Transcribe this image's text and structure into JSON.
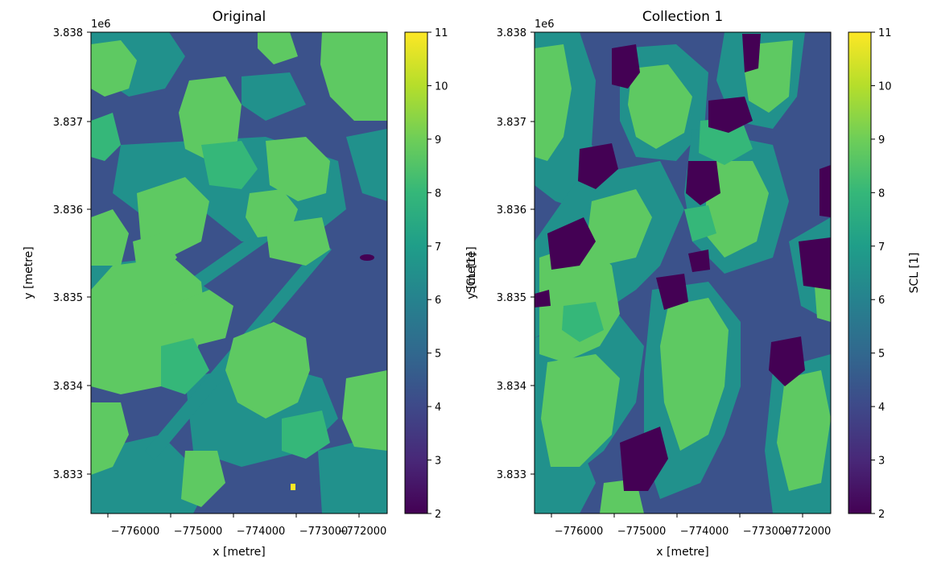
{
  "chart_data": [
    {
      "type": "heatmap",
      "title": "Original",
      "xlabel": "x [metre]",
      "ylabel": "y [metre]",
      "offset_text": "1e6",
      "x_ticks": [
        "−776000",
        "−775000",
        "−774000",
        "−773000",
        "−772000"
      ],
      "y_ticks": [
        "3.833",
        "3.834",
        "3.835",
        "3.836",
        "3.837",
        "3.838"
      ],
      "xlim": [
        -776650,
        -771950
      ],
      "ylim": [
        3.8325,
        3.838
      ],
      "colorbar": {
        "label": "",
        "colormap": "viridis",
        "range": [
          2,
          11
        ],
        "ticks": [
          "2",
          "3",
          "4",
          "5",
          "6",
          "7",
          "8",
          "9",
          "10",
          "11"
        ]
      },
      "dominant_values": [
        5,
        7,
        8,
        9
      ],
      "rare_values": [
        2,
        3,
        10
      ],
      "colors": {
        "5": "#3b528b",
        "7": "#21918c",
        "8": "#35b779",
        "9": "#5ec962",
        "2": "#440154",
        "11": "#fde725"
      }
    },
    {
      "type": "heatmap",
      "title": "Collection 1",
      "xlabel": "x [metre]",
      "ylabel": "y [metre]",
      "ylabel_overlap": "SCL [1]",
      "offset_text": "1e6",
      "x_ticks": [
        "−776000",
        "−775000",
        "−774000",
        "−773000",
        "−772000"
      ],
      "y_ticks": [
        "3.833",
        "3.834",
        "3.835",
        "3.836",
        "3.837",
        "3.838"
      ],
      "xlim": [
        -776650,
        -771950
      ],
      "ylim": [
        3.8325,
        3.838
      ],
      "colorbar": {
        "label": "SCL [1]",
        "colormap": "viridis",
        "range": [
          2,
          11
        ],
        "ticks": [
          "2",
          "3",
          "4",
          "5",
          "6",
          "7",
          "8",
          "9",
          "10",
          "11"
        ]
      },
      "dominant_values": [
        2,
        5,
        7,
        8,
        9
      ],
      "colors": {
        "2": "#440154",
        "5": "#3b528b",
        "7": "#21918c",
        "8": "#35b779",
        "9": "#5ec962"
      }
    }
  ]
}
